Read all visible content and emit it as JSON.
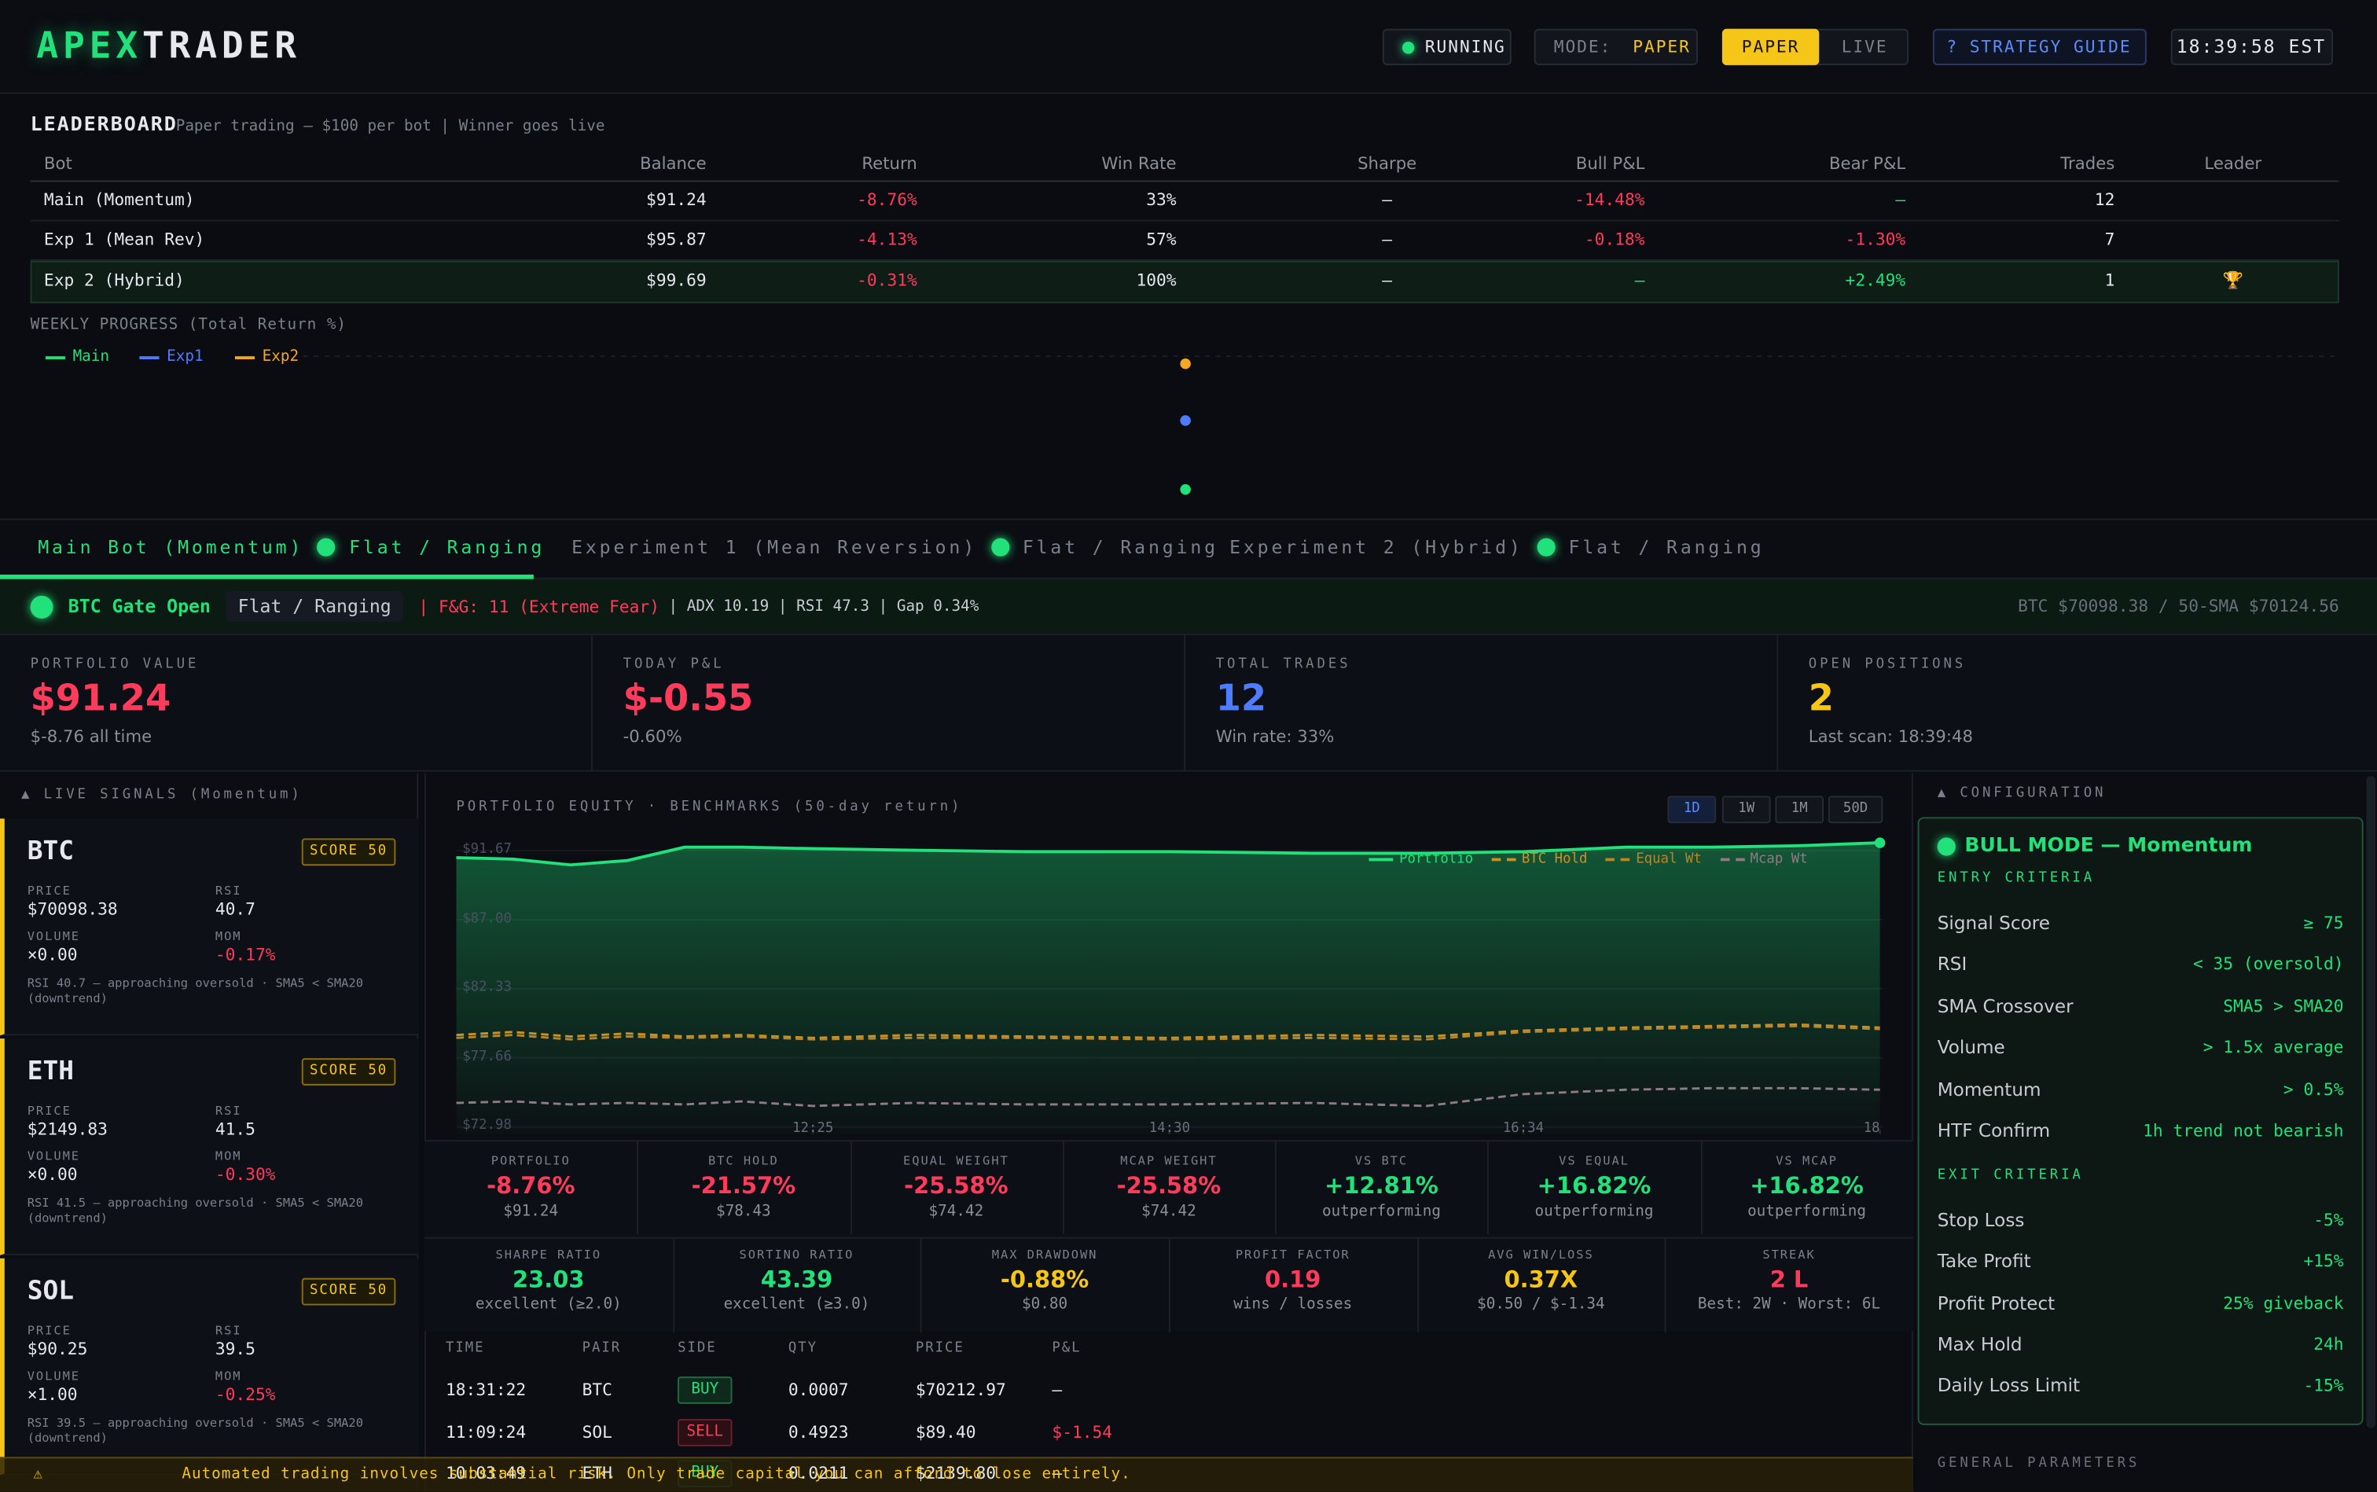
{
  "header": {
    "logo": [
      "APEX",
      "TRADER"
    ],
    "status": "RUNNING",
    "mode_label": "MODE:",
    "mode_value": "PAPER",
    "toggle": [
      "PAPER",
      "LIVE"
    ],
    "guide": "? STRATEGY GUIDE",
    "clock": "18:39:58 EST"
  },
  "leaderboard": {
    "title": "LEADERBOARD",
    "subtitle": "Paper trading — $100 per bot | Winner goes live",
    "columns": [
      "Bot",
      "Balance",
      "Return",
      "Win Rate",
      "Sharpe",
      "Bull P&L",
      "Bear P&L",
      "Trades",
      "Leader"
    ],
    "rows": [
      [
        "Main (Momentum)",
        "$91.24",
        "-8.76%",
        "33%",
        "—",
        "-14.48%",
        "—",
        "12",
        null
      ],
      [
        "Exp 1 (Mean Rev)",
        "$95.87",
        "-4.13%",
        "57%",
        "—",
        "-0.18%",
        "-1.30%",
        "7",
        null
      ],
      [
        "Exp 2 (Hybrid)",
        "$99.69",
        "-0.31%",
        "100%",
        "—",
        "—",
        "+2.49%",
        "1",
        "🏆"
      ]
    ]
  },
  "weekly_chart": {
    "type": "scatter",
    "title": "WEEKLY PROGRESS (Total Return %)",
    "ylim": [
      -10,
      0.5
    ],
    "series": [
      {
        "name": "Main",
        "color": "#22e07a",
        "values": [
          -8.76
        ]
      },
      {
        "name": "Exp1",
        "color": "#4f7cff",
        "values": [
          -4.13
        ]
      },
      {
        "name": "Exp2",
        "color": "#f5a623",
        "values": [
          -0.31
        ]
      }
    ]
  },
  "tabs": [
    {
      "name": "Main Bot (Momentum)",
      "state": "Flat / Ranging",
      "active": true
    },
    {
      "name": "Experiment 1 (Mean Reversion)",
      "state": "Flat / Ranging",
      "active": false
    },
    {
      "name": "Experiment 2 (Hybrid)",
      "state": "Flat / Ranging",
      "active": false
    }
  ],
  "gate": {
    "status": "BTC Gate Open",
    "regime": "Flat / Ranging",
    "fear_greed": "| F&G: 11 (Extreme Fear)",
    "indicators": "| ADX 10.19 | RSI 47.3 | Gap 0.34%",
    "price": "BTC $70098.38 / 50-SMA $70124.56"
  },
  "stats": [
    {
      "label": "PORTFOLIO VALUE",
      "value": "$91.24",
      "sub": "$-8.76 all time",
      "color": "#ff3b5c"
    },
    {
      "label": "TODAY P&L",
      "value": "$-0.55",
      "sub": "-0.60%",
      "color": "#ff3b5c"
    },
    {
      "label": "TOTAL TRADES",
      "value": "12",
      "sub": "Win rate: 33%",
      "color": "#4f7cff"
    },
    {
      "label": "OPEN POSITIONS",
      "value": "2",
      "sub": "Last scan: 18:39:48",
      "color": "#f5c518"
    }
  ],
  "signals": {
    "title": "▲ LIVE SIGNALS (Momentum)",
    "cards": [
      {
        "symbol": "BTC",
        "score": "SCORE 50",
        "price_label": "PRICE",
        "price": "$70098.38",
        "rsi_label": "RSI",
        "rsi": "40.7",
        "volume_label": "VOLUME",
        "volume": "×0.00",
        "mom_label": "MOM",
        "mom": "-0.17%",
        "note": "RSI 40.7 — approaching oversold · SMA5 < SMA20 (downtrend)"
      },
      {
        "symbol": "ETH",
        "score": "SCORE 50",
        "price_label": "PRICE",
        "price": "$2149.83",
        "rsi_label": "RSI",
        "rsi": "41.5",
        "volume_label": "VOLUME",
        "volume": "×0.00",
        "mom_label": "MOM",
        "mom": "-0.30%",
        "note": "RSI 41.5 — approaching oversold · SMA5 < SMA20 (downtrend)"
      },
      {
        "symbol": "SOL",
        "score": "SCORE 50",
        "price_label": "PRICE",
        "price": "$90.25",
        "rsi_label": "RSI",
        "rsi": "39.5",
        "volume_label": "VOLUME",
        "volume": "×1.00",
        "mom_label": "MOM",
        "mom": "-0.25%",
        "note": "RSI 39.5 — approaching oversold · SMA5 < SMA20 (downtrend)"
      }
    ]
  },
  "equity": {
    "title": "PORTFOLIO EQUITY · BENCHMARKS (50-day return)",
    "ranges": [
      "1D",
      "1W",
      "1M",
      "50D"
    ],
    "chart_data": {
      "type": "line",
      "x": [
        620,
        640,
        660,
        680,
        700,
        720,
        745,
        780,
        820,
        870,
        920,
        960,
        994,
        1030,
        1060,
        1090,
        1119
      ],
      "xlim": [
        620,
        1120
      ],
      "xticks": [
        {
          "value": 745,
          "label": "12:25"
        },
        {
          "value": 870,
          "label": "14:30"
        },
        {
          "value": 994,
          "label": "16:34"
        },
        {
          "value": 1119,
          "label": "18"
        }
      ],
      "ylim": [
        72.5,
        92.5
      ],
      "yticks": [
        {
          "value": 91.67,
          "label": "$91.67"
        },
        {
          "value": 87,
          "label": "$87.00"
        },
        {
          "value": 82.33,
          "label": "$82.33"
        },
        {
          "value": 77.66,
          "label": "$77.66"
        },
        {
          "value": 72.98,
          "label": "$72.98"
        }
      ],
      "series": [
        {
          "name": "Portfolio",
          "color": "#22e07a",
          "dashed": false,
          "values": [
            91.2,
            91.1,
            90.7,
            91.0,
            91.9,
            91.9,
            91.8,
            91.7,
            91.6,
            91.6,
            91.5,
            91.5,
            91.6,
            91.9,
            91.9,
            92.0,
            92.2
          ]
        },
        {
          "name": "BTC Hold",
          "color": "#c8922a",
          "dashed": true,
          "values": [
            79.2,
            79.4,
            79.1,
            79.3,
            79.1,
            79.2,
            79.0,
            79.2,
            79.1,
            79.0,
            79.2,
            79.1,
            79.5,
            79.7,
            79.8,
            79.9,
            79.7
          ]
        },
        {
          "name": "Equal Wt",
          "color": "#b8862a",
          "dashed": true,
          "values": [
            79.0,
            79.2,
            78.9,
            79.1,
            79.0,
            79.1,
            78.9,
            79.0,
            79.0,
            78.9,
            79.0,
            78.9,
            79.4,
            79.6,
            79.7,
            79.8,
            79.6
          ]
        },
        {
          "name": "Mcap Wt",
          "color": "#8f7a86",
          "dashed": true,
          "values": [
            74.6,
            74.7,
            74.5,
            74.6,
            74.5,
            74.7,
            74.4,
            74.6,
            74.5,
            74.5,
            74.6,
            74.4,
            75.2,
            75.5,
            75.6,
            75.6,
            75.5
          ]
        }
      ]
    }
  },
  "metrics": [
    [
      {
        "label": "PORTFOLIO",
        "value": "-8.76%",
        "sub": "$91.24",
        "color": "#ff3b5c"
      },
      {
        "label": "BTC HOLD",
        "value": "-21.57%",
        "sub": "$78.43",
        "color": "#ff3b5c"
      },
      {
        "label": "EQUAL WEIGHT",
        "value": "-25.58%",
        "sub": "$74.42",
        "color": "#ff3b5c"
      },
      {
        "label": "MCAP WEIGHT",
        "value": "-25.58%",
        "sub": "$74.42",
        "color": "#ff3b5c"
      },
      {
        "label": "VS BTC",
        "value": "+12.81%",
        "sub": "outperforming",
        "color": "#22e07a"
      },
      {
        "label": "VS EQUAL",
        "value": "+16.82%",
        "sub": "outperforming",
        "color": "#22e07a"
      },
      {
        "label": "VS MCAP",
        "value": "+16.82%",
        "sub": "outperforming",
        "color": "#22e07a"
      }
    ],
    [
      {
        "label": "SHARPE RATIO",
        "value": "23.03",
        "sub": "excellent (≥2.0)",
        "color": "#22e07a"
      },
      {
        "label": "SORTINO RATIO",
        "value": "43.39",
        "sub": "excellent (≥3.0)",
        "color": "#22e07a"
      },
      {
        "label": "MAX DRAWDOWN",
        "value": "-0.88%",
        "sub": "$0.80",
        "color": "#f5c518"
      },
      {
        "label": "PROFIT FACTOR",
        "value": "0.19",
        "sub": "wins / losses",
        "color": "#ff3b5c"
      },
      {
        "label": "AVG WIN/LOSS",
        "value": "0.37X",
        "sub": "$0.50 / $-1.34",
        "color": "#f5c518"
      },
      {
        "label": "STREAK",
        "value": "2 L",
        "sub": "Best: 2W · Worst: 6L",
        "color": "#ff3b5c"
      }
    ]
  ],
  "trades": {
    "columns": [
      "TIME",
      "PAIR",
      "SIDE",
      "QTY",
      "PRICE",
      "P&L"
    ],
    "rows": [
      [
        "18:31:22",
        "BTC",
        "BUY",
        "0.0007",
        "$70212.97",
        "—"
      ],
      [
        "11:09:24",
        "SOL",
        "SELL",
        "0.4923",
        "$89.40",
        "$-1.54"
      ],
      [
        "10:03:49",
        "ETH",
        "BUY",
        "0.0211",
        "$2139.80",
        "—"
      ]
    ]
  },
  "config": {
    "title": "▲ CONFIGURATION",
    "mode": "BULL MODE — Momentum",
    "entry_title": "ENTRY CRITERIA",
    "entry": [
      [
        "Signal Score",
        "≥ 75"
      ],
      [
        "RSI",
        "< 35 (oversold)"
      ],
      [
        "SMA Crossover",
        "SMA5 > SMA20"
      ],
      [
        "Volume",
        "> 1.5x average"
      ],
      [
        "Momentum",
        "> 0.5%"
      ],
      [
        "HTF Confirm",
        "1h trend not bearish"
      ]
    ],
    "exit_title": "EXIT CRITERIA",
    "exit": [
      [
        "Stop Loss",
        "-5%"
      ],
      [
        "Take Profit",
        "+15%"
      ],
      [
        "Profit Protect",
        "25% giveback"
      ],
      [
        "Max Hold",
        "24h"
      ],
      [
        "Daily Loss Limit",
        "-15%"
      ]
    ],
    "general_title": "GENERAL PARAMETERS"
  },
  "footer": {
    "icon": "⚠",
    "warning": "Automated trading involves substantial risk. Only trade capital you can afford to lose entirely."
  }
}
